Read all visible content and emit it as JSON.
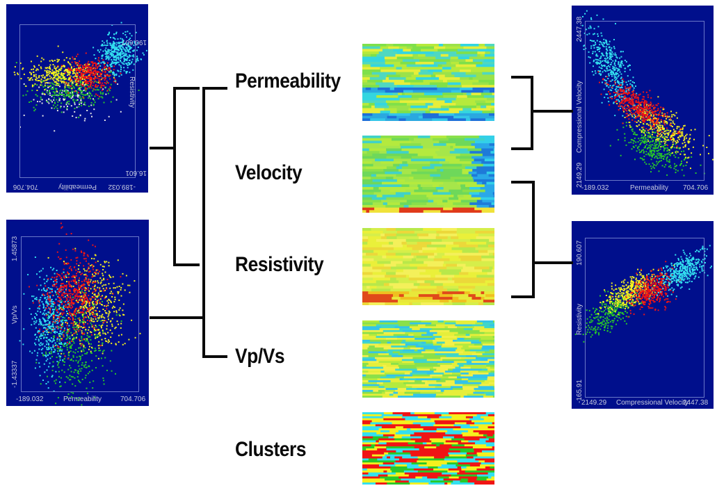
{
  "properties": {
    "permeability": "Permeability",
    "velocity": "Velocity",
    "resistivity": "Resistivity",
    "vpvs": "Vp/Vs",
    "clusters": "Clusters"
  },
  "plots": {
    "top_left": {
      "y_max": "190.607",
      "y_min": "16.601",
      "y_label": "Resistivity",
      "x_min": "-189.032",
      "x_label": "Permeability",
      "x_max": "704.706"
    },
    "bottom_left": {
      "y_max": "1.45873",
      "y_min": "-1.43337",
      "y_label": "Vp/Vs",
      "x_min": "-189.032",
      "x_label": "Permeability",
      "x_max": "704.706"
    },
    "top_right": {
      "y_max": "2447.38",
      "y_min": "2149.29",
      "y_label": "Compressional Velocity",
      "x_min": "-189.032",
      "x_label": "Permeability",
      "x_max": "704.706"
    },
    "bottom_right": {
      "y_max": "190.607",
      "y_min": "-165.91",
      "y_label": "Resistivity",
      "x_min": "2149.29",
      "x_label": "Compressional Velocity",
      "x_max": "2447.38"
    }
  },
  "colors": {
    "plot_bg": "#000f8c",
    "cluster_cyan": "#33e0f0",
    "cluster_yellow": "#f5f01e",
    "cluster_red": "#f01414",
    "cluster_green": "#28c828",
    "cluster_white": "#e6e6e6"
  }
}
